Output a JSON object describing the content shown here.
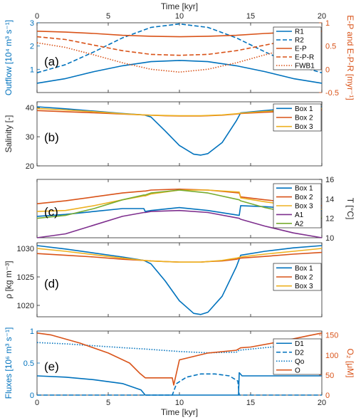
{
  "colors": {
    "blue": "#0072BD",
    "orange": "#D95319",
    "yellow": "#EDB120",
    "purple": "#7E2F8E",
    "green": "#77AC30",
    "axis": "#262626"
  },
  "top_axis": {
    "label": "Time [kyr]",
    "ticks": [
      "0",
      "5",
      "10",
      "15",
      "20"
    ]
  },
  "bottom_axis": {
    "label": "Time [kyr]",
    "ticks": [
      "0",
      "5",
      "10",
      "15",
      "20"
    ]
  },
  "panels": [
    {
      "letter": "(a)",
      "ylabel_left": "Outflow [10⁴ m³ s⁻¹]",
      "yticks_left": [
        "1",
        "2",
        "3"
      ],
      "ylabel_right": "E-P and E-P-R [myr⁻¹]",
      "yticks_right": [
        "1",
        "0.5",
        "0",
        "-0.5"
      ],
      "legend": [
        "R1",
        "R2",
        "E-P",
        "E-P-R",
        "FWB1"
      ]
    },
    {
      "letter": "(b)",
      "ylabel_left": "Salinity [-]",
      "yticks_left": [
        "40",
        "30",
        "20"
      ],
      "legend": [
        "Box 1",
        "Box 2",
        "Box 3"
      ]
    },
    {
      "letter": "(c)",
      "ylabel_right": "T [°C]",
      "yticks_right": [
        "16",
        "14",
        "12",
        "10"
      ],
      "legend": [
        "Box 1",
        "Box 2",
        "Box 3",
        "A1",
        "A2"
      ]
    },
    {
      "letter": "(d)",
      "ylabel_left": "ρ [kg m⁻³]",
      "yticks_left": [
        "1030",
        "1025",
        "1020"
      ],
      "legend": [
        "Box 1",
        "Box 2",
        "Box 3"
      ]
    },
    {
      "letter": "(e)",
      "ylabel_left": "Fluxes [10⁶ m³ s⁻¹]",
      "yticks_left": [
        "1",
        "0.5",
        "0"
      ],
      "ylabel_right": "O₂ [μM]",
      "yticks_right": [
        "150",
        "100",
        "50",
        "0"
      ],
      "legend": [
        "D1",
        "D2",
        "Qo",
        "O"
      ]
    }
  ],
  "chart_data": [
    {
      "type": "line",
      "panel": "(a)",
      "xlim": [
        0,
        20
      ],
      "ylim_left": [
        0,
        3
      ],
      "ylim_right": [
        -0.5,
        1
      ],
      "x": [
        0,
        2,
        4,
        6,
        8,
        10,
        12,
        14,
        16,
        18,
        20
      ],
      "series": [
        {
          "name": "R1",
          "axis": "left",
          "style": "solid",
          "color": "blue",
          "values": [
            0.4,
            0.6,
            0.9,
            1.15,
            1.33,
            1.38,
            1.33,
            1.15,
            0.9,
            0.6,
            0.4
          ]
        },
        {
          "name": "R2",
          "axis": "left",
          "style": "dashed",
          "color": "blue",
          "values": [
            0.85,
            1.2,
            1.75,
            2.35,
            2.8,
            2.95,
            2.8,
            2.35,
            1.75,
            1.2,
            0.85
          ]
        },
        {
          "name": "E-P",
          "axis": "right",
          "style": "solid",
          "color": "orange",
          "values": [
            0.82,
            0.8,
            0.77,
            0.73,
            0.71,
            0.7,
            0.71,
            0.73,
            0.77,
            0.8,
            0.82
          ]
        },
        {
          "name": "E-P-R",
          "axis": "right",
          "style": "dashed",
          "color": "orange",
          "values": [
            0.7,
            0.64,
            0.52,
            0.4,
            0.32,
            0.3,
            0.32,
            0.4,
            0.52,
            0.64,
            0.7
          ]
        },
        {
          "name": "FWB1",
          "axis": "right",
          "style": "dotted",
          "color": "orange",
          "values": [
            0.57,
            0.47,
            0.31,
            0.14,
            0.0,
            -0.06,
            0.0,
            0.14,
            0.31,
            0.47,
            0.57
          ]
        }
      ]
    },
    {
      "type": "line",
      "panel": "(b)",
      "xlim": [
        0,
        20
      ],
      "ylim": [
        20,
        42
      ],
      "x": [
        0,
        2,
        4,
        6,
        7.5,
        8,
        9,
        10,
        11,
        11.5,
        12,
        13,
        14,
        14.3,
        16,
        18,
        20
      ],
      "series": [
        {
          "name": "Box 1",
          "color": "blue",
          "values": [
            40.3,
            39.6,
            38.8,
            38.0,
            37.5,
            36.8,
            32.0,
            27.0,
            24.0,
            23.7,
            24.2,
            28.0,
            35.5,
            38.2,
            39.0,
            39.8,
            40.3
          ]
        },
        {
          "name": "Box 2",
          "color": "orange",
          "values": [
            39.0,
            38.6,
            38.2,
            37.8,
            37.5,
            37.4,
            37.2,
            37.1,
            37.1,
            37.1,
            37.2,
            37.4,
            37.8,
            38.0,
            38.4,
            38.8,
            39.2
          ]
        },
        {
          "name": "Box 3",
          "color": "yellow",
          "values": [
            39.7,
            39.2,
            38.6,
            37.9,
            37.5,
            37.4,
            37.3,
            37.2,
            37.2,
            37.2,
            37.3,
            37.5,
            37.9,
            38.1,
            38.7,
            39.3,
            39.8
          ]
        }
      ]
    },
    {
      "type": "line",
      "panel": "(c)",
      "xlim": [
        0,
        20
      ],
      "ylim": [
        10,
        16
      ],
      "x": [
        0,
        2,
        4,
        6,
        7.5,
        7.6,
        8,
        10,
        12,
        14.2,
        14.3,
        16,
        18,
        20
      ],
      "series": [
        {
          "name": "Box 1",
          "color": "blue",
          "values": [
            12.2,
            12.4,
            12.7,
            13.0,
            13.0,
            12.7,
            12.8,
            13.1,
            12.8,
            12.3,
            13.3,
            13.2,
            13.0,
            12.8
          ]
        },
        {
          "name": "Box 2",
          "color": "orange",
          "values": [
            13.5,
            13.8,
            14.2,
            14.6,
            14.8,
            14.8,
            14.9,
            15.0,
            14.9,
            14.6,
            14.2,
            13.9,
            13.6,
            13.3
          ]
        },
        {
          "name": "Box 3",
          "color": "yellow",
          "values": [
            12.7,
            12.8,
            13.3,
            13.9,
            14.3,
            14.3,
            14.5,
            14.9,
            14.9,
            14.7,
            14.1,
            13.7,
            13.3,
            12.9
          ]
        },
        {
          "name": "A1",
          "color": "purple",
          "values": [
            10.0,
            10.4,
            11.3,
            12.2,
            12.6,
            12.6,
            12.7,
            12.8,
            12.6,
            12.0,
            11.9,
            11.2,
            10.5,
            10.0
          ]
        },
        {
          "name": "A2",
          "color": "green",
          "values": [
            12.0,
            12.3,
            13.0,
            13.9,
            14.4,
            14.4,
            14.6,
            14.9,
            14.6,
            13.9,
            13.8,
            13.1,
            12.5,
            12.1
          ]
        }
      ]
    },
    {
      "type": "line",
      "panel": "(d)",
      "xlim": [
        0,
        20
      ],
      "ylim": [
        1018,
        1031
      ],
      "x": [
        0,
        2,
        4,
        6,
        7.5,
        8,
        9,
        10,
        11,
        11.5,
        12,
        13,
        14,
        14.3,
        16,
        18,
        20
      ],
      "series": [
        {
          "name": "Box 1",
          "color": "blue",
          "values": [
            1030.5,
            1029.9,
            1029.2,
            1028.5,
            1027.9,
            1027.3,
            1024.3,
            1020.8,
            1018.6,
            1018.4,
            1018.8,
            1021.6,
            1026.8,
            1028.8,
            1029.5,
            1030.1,
            1030.5
          ]
        },
        {
          "name": "Box 2",
          "color": "orange",
          "values": [
            1029.1,
            1028.8,
            1028.5,
            1028.1,
            1027.9,
            1027.8,
            1027.7,
            1027.6,
            1027.6,
            1027.6,
            1027.7,
            1027.8,
            1028.1,
            1028.3,
            1028.6,
            1029.0,
            1029.3
          ]
        },
        {
          "name": "Box 3",
          "color": "yellow",
          "values": [
            1030.0,
            1029.5,
            1028.9,
            1028.3,
            1027.9,
            1027.8,
            1027.7,
            1027.6,
            1027.6,
            1027.6,
            1027.7,
            1027.9,
            1028.3,
            1028.5,
            1029.0,
            1029.5,
            1030.0
          ]
        }
      ]
    },
    {
      "type": "line",
      "panel": "(e)",
      "xlim": [
        0,
        20
      ],
      "ylim_left": [
        0,
        1
      ],
      "ylim_right": [
        0,
        160
      ],
      "series": [
        {
          "name": "D1",
          "axis": "left",
          "style": "solid",
          "color": "blue",
          "x": [
            0,
            2,
            4,
            6,
            7.3,
            7.6,
            8,
            14.15,
            14.2,
            14.4,
            16,
            18,
            20
          ],
          "values": [
            0.3,
            0.28,
            0.24,
            0.18,
            0.08,
            0.0,
            0.0,
            0.0,
            0.35,
            0.3,
            0.3,
            0.3,
            0.3
          ]
        },
        {
          "name": "D2",
          "axis": "left",
          "style": "dashed",
          "color": "blue",
          "x": [
            0,
            9.5,
            9.8,
            10.5,
            11.5,
            12.5,
            13.5,
            14.1,
            14.2,
            20
          ],
          "values": [
            0.0,
            0.0,
            0.18,
            0.28,
            0.33,
            0.33,
            0.3,
            0.22,
            0.0,
            0.0
          ]
        },
        {
          "name": "Qo",
          "axis": "left",
          "style": "dotted",
          "color": "blue",
          "x": [
            0,
            2,
            4,
            6,
            7.5,
            10,
            12,
            14,
            14.2,
            16,
            18,
            20
          ],
          "values": [
            0.82,
            0.8,
            0.77,
            0.74,
            0.72,
            0.68,
            0.66,
            0.67,
            0.7,
            0.74,
            0.78,
            0.82
          ]
        },
        {
          "name": "O",
          "axis": "right",
          "style": "solid",
          "color": "orange",
          "x": [
            0,
            1,
            3,
            5,
            6.5,
            7.2,
            7.6,
            9.5,
            9.6,
            10,
            12,
            14,
            14.3,
            15,
            17,
            19,
            20
          ],
          "values": [
            155,
            150,
            130,
            105,
            80,
            55,
            43,
            43,
            25,
            88,
            105,
            112,
            118,
            120,
            133,
            148,
            155
          ]
        }
      ]
    }
  ]
}
